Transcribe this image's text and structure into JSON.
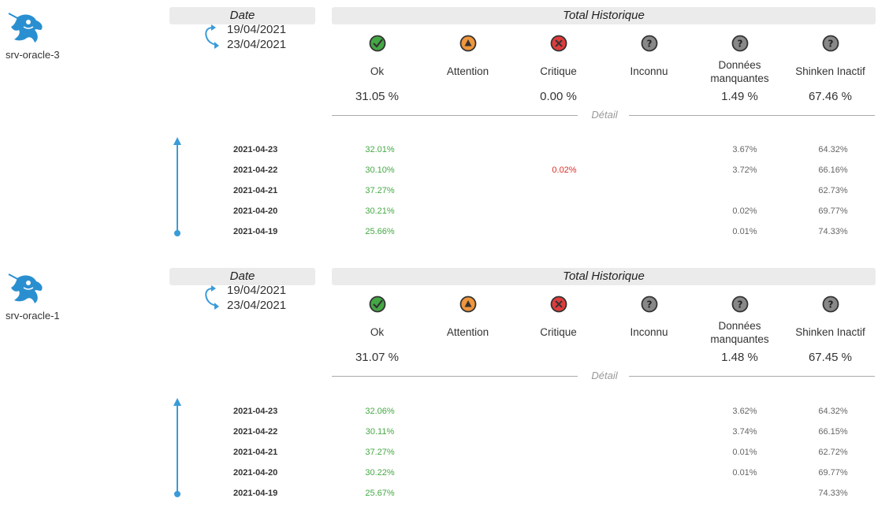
{
  "reports": [
    {
      "host": "srv-oracle-3",
      "date_header": "Date",
      "date_start": "19/04/2021",
      "date_end": "23/04/2021",
      "history_header": "Total Historique",
      "columns": [
        {
          "label": "Ok",
          "icon": "ok-icon",
          "total": "31.05 %"
        },
        {
          "label": "Attention",
          "icon": "warning-icon",
          "total": ""
        },
        {
          "label": "Critique",
          "icon": "critical-icon",
          "total": "0.00 %"
        },
        {
          "label": "Inconnu",
          "icon": "unknown-icon",
          "total": ""
        },
        {
          "label": "Données manquantes",
          "icon": "missing-data-icon",
          "total": "1.49 %"
        },
        {
          "label": "Shinken Inactif",
          "icon": "inactive-icon",
          "total": "67.46 %"
        }
      ],
      "detail_label": "Détail",
      "rows": [
        {
          "date": "2021-04-23",
          "ok": "32.01%",
          "critique": "",
          "missing": "3.67%",
          "inactive": "64.32%"
        },
        {
          "date": "2021-04-22",
          "ok": "30.10%",
          "critique": "0.02%",
          "missing": "3.72%",
          "inactive": "66.16%"
        },
        {
          "date": "2021-04-21",
          "ok": "37.27%",
          "critique": "",
          "missing": "",
          "inactive": "62.73%"
        },
        {
          "date": "2021-04-20",
          "ok": "30.21%",
          "critique": "",
          "missing": "0.02%",
          "inactive": "69.77%"
        },
        {
          "date": "2021-04-19",
          "ok": "25.66%",
          "critique": "",
          "missing": "0.01%",
          "inactive": "74.33%"
        }
      ]
    },
    {
      "host": "srv-oracle-1",
      "date_header": "Date",
      "date_start": "19/04/2021",
      "date_end": "23/04/2021",
      "history_header": "Total Historique",
      "columns": [
        {
          "label": "Ok",
          "icon": "ok-icon",
          "total": "31.07 %"
        },
        {
          "label": "Attention",
          "icon": "warning-icon",
          "total": ""
        },
        {
          "label": "Critique",
          "icon": "critical-icon",
          "total": ""
        },
        {
          "label": "Inconnu",
          "icon": "unknown-icon",
          "total": ""
        },
        {
          "label": "Données manquantes",
          "icon": "missing-data-icon",
          "total": "1.48 %"
        },
        {
          "label": "Shinken Inactif",
          "icon": "inactive-icon",
          "total": "67.45 %"
        }
      ],
      "detail_label": "Détail",
      "rows": [
        {
          "date": "2021-04-23",
          "ok": "32.06%",
          "critique": "",
          "missing": "3.62%",
          "inactive": "64.32%"
        },
        {
          "date": "2021-04-22",
          "ok": "30.11%",
          "critique": "",
          "missing": "3.74%",
          "inactive": "66.15%"
        },
        {
          "date": "2021-04-21",
          "ok": "37.27%",
          "critique": "",
          "missing": "0.01%",
          "inactive": "62.72%"
        },
        {
          "date": "2021-04-20",
          "ok": "30.22%",
          "critique": "",
          "missing": "0.01%",
          "inactive": "69.77%"
        },
        {
          "date": "2021-04-19",
          "ok": "25.67%",
          "critique": "",
          "missing": "",
          "inactive": "74.33%"
        }
      ]
    }
  ],
  "colors": {
    "ok": "#44a844",
    "warning": "#f0963c",
    "critical": "#e03c3c",
    "unknown": "#888888",
    "accent": "#3a9bd8"
  }
}
